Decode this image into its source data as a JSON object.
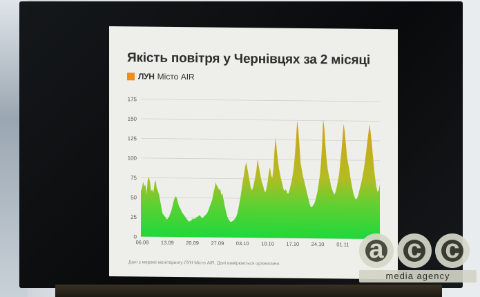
{
  "title": "Якість повітря у Чернівцях за 2 місяці",
  "brand": {
    "luna": "ЛУН",
    "name": "Місто AIR",
    "accent": "#f08c1d"
  },
  "footnote": "Дані з мережі моніторингу ЛУН Місто AIR. Дані вимірюються щохвилини.",
  "watermark": {
    "letters": [
      "a",
      "c",
      "c"
    ],
    "tagline": "media agency"
  },
  "chart_data": {
    "type": "area",
    "title": "Якість повітря у Чернівцях за 2 місяці",
    "xlabel": "",
    "ylabel": "",
    "ylim": [
      0,
      175
    ],
    "yticks": [
      0,
      25,
      50,
      75,
      100,
      125,
      150,
      175
    ],
    "xticks": [
      "06.09",
      "13.09",
      "20.09",
      "27.09",
      "03.10",
      "10.10",
      "17.10",
      "24.10",
      "01.11"
    ],
    "grid": true,
    "legend": "none",
    "colors": {
      "low": "#22d63a",
      "mid": "#8cc62a",
      "high": "#c9a81e"
    },
    "x_start": "06.09",
    "x_end": "08.11",
    "values": [
      58,
      62,
      70,
      64,
      66,
      54,
      72,
      76,
      70,
      58,
      60,
      56,
      68,
      72,
      62,
      58,
      54,
      46,
      38,
      30,
      28,
      26,
      24,
      22,
      24,
      26,
      30,
      34,
      40,
      46,
      50,
      52,
      48,
      42,
      38,
      36,
      32,
      30,
      28,
      26,
      24,
      22,
      20,
      20,
      21,
      22,
      24,
      23,
      24,
      25,
      26,
      27,
      28,
      26,
      24,
      25,
      27,
      28,
      30,
      32,
      36,
      40,
      44,
      48,
      56,
      62,
      70,
      66,
      64,
      60,
      62,
      54,
      56,
      48,
      40,
      34,
      28,
      24,
      22,
      20,
      20,
      21,
      22,
      24,
      26,
      30,
      36,
      44,
      52,
      62,
      72,
      80,
      90,
      96,
      88,
      80,
      72,
      64,
      60,
      64,
      70,
      78,
      86,
      100,
      92,
      84,
      76,
      70,
      66,
      60,
      58,
      64,
      72,
      84,
      90,
      80,
      76,
      88,
      112,
      128,
      112,
      98,
      88,
      80,
      74,
      68,
      62,
      60,
      62,
      58,
      56,
      60,
      66,
      72,
      80,
      90,
      106,
      126,
      150,
      138,
      118,
      96,
      88,
      80,
      74,
      68,
      62,
      56,
      50,
      44,
      40,
      40,
      42,
      44,
      48,
      54,
      60,
      70,
      80,
      96,
      120,
      152,
      140,
      118,
      100,
      88,
      80,
      74,
      66,
      62,
      58,
      56,
      60,
      66,
      74,
      82,
      96,
      110,
      128,
      146,
      136,
      120,
      104,
      96,
      88,
      78,
      70,
      62,
      56,
      52,
      50,
      52,
      56,
      62,
      68,
      74,
      82,
      90,
      100,
      112,
      124,
      136,
      146,
      134,
      120,
      104,
      88,
      76,
      66,
      60,
      62,
      70
    ]
  }
}
